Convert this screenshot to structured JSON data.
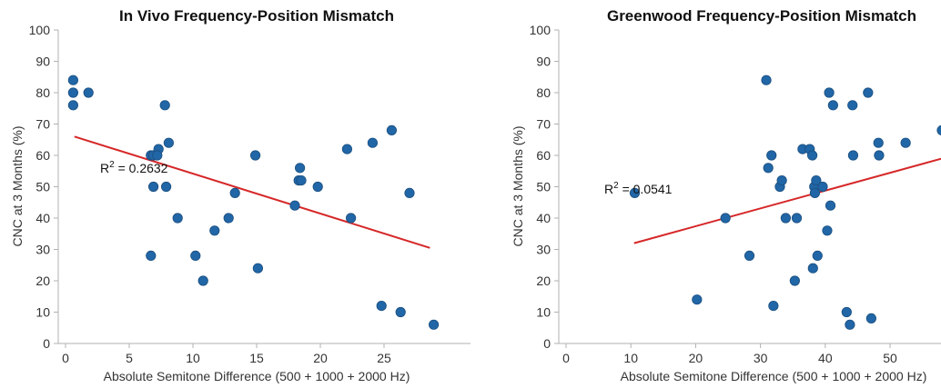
{
  "colors": {
    "point": "#2166a6",
    "point_edge": "#1b4f80",
    "fit": "#d62728",
    "axis": "#b0b0b0"
  },
  "chart_data": [
    {
      "type": "scatter",
      "title": "In Vivo Frequency-Position Mismatch",
      "xlabel": "Absolute Semitone Difference (500 + 1000 + 2000 Hz)",
      "ylabel": "CNC at 3 Months (%)",
      "xlim": [
        0,
        30
      ],
      "ylim": [
        0,
        100
      ],
      "xticks": [
        0,
        5,
        10,
        15,
        20,
        25
      ],
      "yticks": [
        0,
        10,
        20,
        30,
        40,
        50,
        60,
        70,
        80,
        90,
        100
      ],
      "grid": false,
      "annotation": {
        "base": "R",
        "sup": "2",
        "rest": " = 0.2632"
      },
      "fit_line": {
        "x": [
          0.7,
          28.6
        ],
        "y": [
          66,
          30.5
        ]
      },
      "points": [
        {
          "x": 0.6,
          "y": 84
        },
        {
          "x": 0.6,
          "y": 80
        },
        {
          "x": 0.6,
          "y": 76
        },
        {
          "x": 1.8,
          "y": 80
        },
        {
          "x": 6.7,
          "y": 60
        },
        {
          "x": 6.9,
          "y": 60
        },
        {
          "x": 7.3,
          "y": 62
        },
        {
          "x": 7.2,
          "y": 60
        },
        {
          "x": 6.9,
          "y": 50
        },
        {
          "x": 6.7,
          "y": 28
        },
        {
          "x": 7.8,
          "y": 76
        },
        {
          "x": 8.1,
          "y": 64
        },
        {
          "x": 7.9,
          "y": 50
        },
        {
          "x": 8.8,
          "y": 40
        },
        {
          "x": 10.2,
          "y": 28
        },
        {
          "x": 10.8,
          "y": 20
        },
        {
          "x": 11.7,
          "y": 36
        },
        {
          "x": 12.8,
          "y": 40
        },
        {
          "x": 13.3,
          "y": 48
        },
        {
          "x": 14.9,
          "y": 60
        },
        {
          "x": 15.1,
          "y": 24
        },
        {
          "x": 18.0,
          "y": 44
        },
        {
          "x": 18.3,
          "y": 52
        },
        {
          "x": 18.4,
          "y": 56
        },
        {
          "x": 18.5,
          "y": 52
        },
        {
          "x": 19.8,
          "y": 50
        },
        {
          "x": 22.1,
          "y": 62
        },
        {
          "x": 22.4,
          "y": 40
        },
        {
          "x": 24.1,
          "y": 64
        },
        {
          "x": 25.6,
          "y": 68
        },
        {
          "x": 24.8,
          "y": 12
        },
        {
          "x": 26.3,
          "y": 10
        },
        {
          "x": 27.0,
          "y": 48
        },
        {
          "x": 28.9,
          "y": 6
        }
      ]
    },
    {
      "type": "scatter",
      "title": "Greenwood Frequency-Position Mismatch",
      "xlabel": "Absolute Semitone Difference (500 + 1000 + 2000 Hz)",
      "ylabel": "CNC at 3 Months (%)",
      "xlim": [
        0,
        58
      ],
      "ylim": [
        0,
        100
      ],
      "xticks": [
        0,
        10,
        20,
        30,
        40,
        50
      ],
      "yticks": [
        0,
        10,
        20,
        30,
        40,
        50,
        60,
        70,
        80,
        90,
        100
      ],
      "grid": false,
      "annotation": {
        "base": "R",
        "sup": "2",
        "rest": " = 0.0541"
      },
      "fit_line": {
        "x": [
          10.5,
          58
        ],
        "y": [
          32,
          59
        ]
      },
      "points": [
        {
          "x": 10.6,
          "y": 48
        },
        {
          "x": 20.2,
          "y": 14
        },
        {
          "x": 24.6,
          "y": 40
        },
        {
          "x": 28.3,
          "y": 28
        },
        {
          "x": 30.9,
          "y": 84
        },
        {
          "x": 31.2,
          "y": 56
        },
        {
          "x": 31.7,
          "y": 60
        },
        {
          "x": 32.0,
          "y": 12
        },
        {
          "x": 33.0,
          "y": 50
        },
        {
          "x": 33.3,
          "y": 52
        },
        {
          "x": 33.9,
          "y": 40
        },
        {
          "x": 35.3,
          "y": 20
        },
        {
          "x": 35.6,
          "y": 40
        },
        {
          "x": 36.5,
          "y": 62
        },
        {
          "x": 37.6,
          "y": 62
        },
        {
          "x": 38.0,
          "y": 60
        },
        {
          "x": 38.1,
          "y": 24
        },
        {
          "x": 38.3,
          "y": 50
        },
        {
          "x": 38.4,
          "y": 48
        },
        {
          "x": 38.6,
          "y": 52
        },
        {
          "x": 38.8,
          "y": 28
        },
        {
          "x": 39.6,
          "y": 50
        },
        {
          "x": 40.3,
          "y": 36
        },
        {
          "x": 40.6,
          "y": 80
        },
        {
          "x": 40.8,
          "y": 44
        },
        {
          "x": 41.2,
          "y": 76
        },
        {
          "x": 43.3,
          "y": 10
        },
        {
          "x": 43.8,
          "y": 6
        },
        {
          "x": 44.2,
          "y": 76
        },
        {
          "x": 44.3,
          "y": 60
        },
        {
          "x": 46.6,
          "y": 80
        },
        {
          "x": 47.1,
          "y": 8
        },
        {
          "x": 48.2,
          "y": 64
        },
        {
          "x": 48.3,
          "y": 60
        },
        {
          "x": 52.4,
          "y": 64
        },
        {
          "x": 58.0,
          "y": 68
        }
      ]
    }
  ]
}
